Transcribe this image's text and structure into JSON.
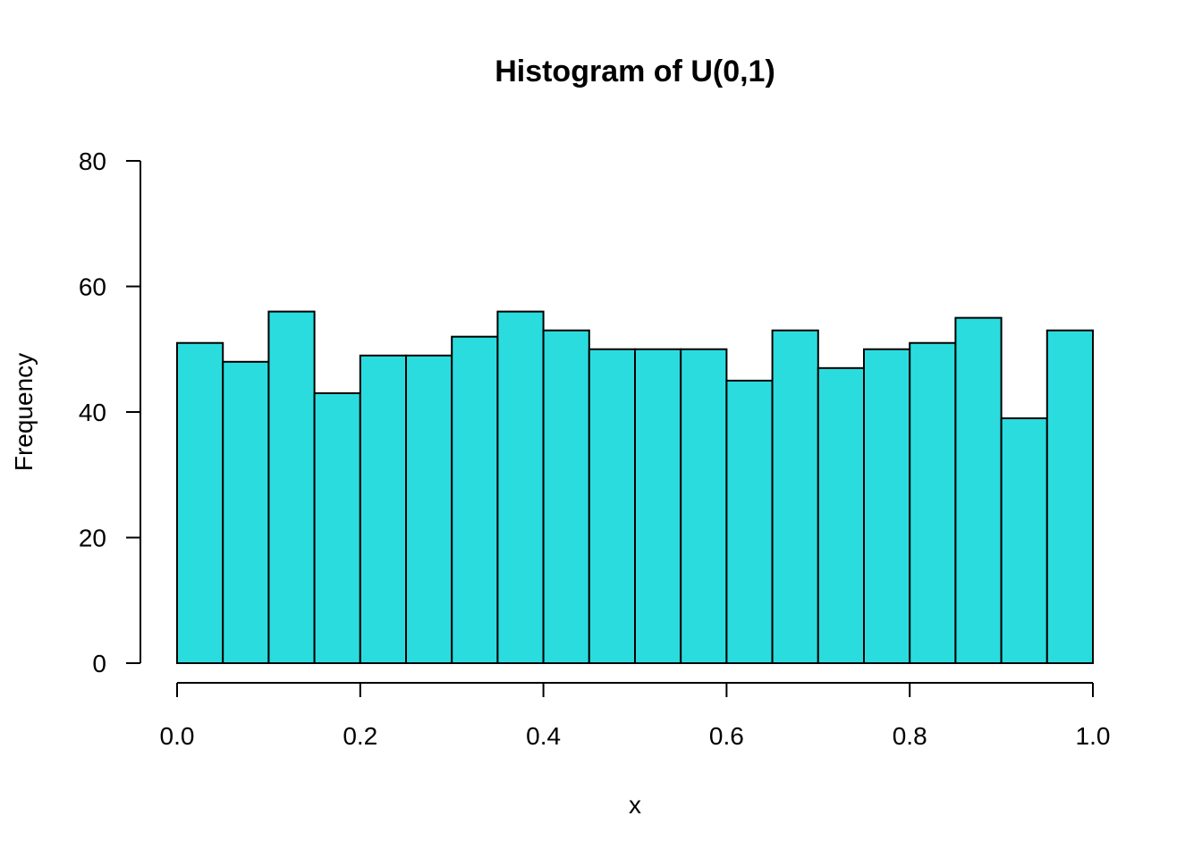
{
  "chart_data": {
    "type": "bar",
    "title": "Histogram of U(0,1)",
    "xlabel": "x",
    "ylabel": "Frequency",
    "bin_width": 0.05,
    "bin_starts": [
      0.0,
      0.05,
      0.1,
      0.15,
      0.2,
      0.25,
      0.3,
      0.35,
      0.4,
      0.45,
      0.5,
      0.55,
      0.6,
      0.65,
      0.7,
      0.75,
      0.8,
      0.85,
      0.9,
      0.95
    ],
    "values": [
      51,
      48,
      56,
      43,
      49,
      49,
      52,
      56,
      53,
      50,
      50,
      50,
      45,
      53,
      47,
      50,
      51,
      55,
      39,
      53
    ],
    "xlim": [
      0,
      1
    ],
    "ylim": [
      0,
      80
    ],
    "x_ticks": [
      "0.0",
      "0.2",
      "0.4",
      "0.6",
      "0.8",
      "1.0"
    ],
    "y_ticks": [
      "0",
      "20",
      "40",
      "60",
      "80"
    ],
    "grid": false,
    "bar_color": "#2BDCDE",
    "edge_color": "#000000"
  }
}
